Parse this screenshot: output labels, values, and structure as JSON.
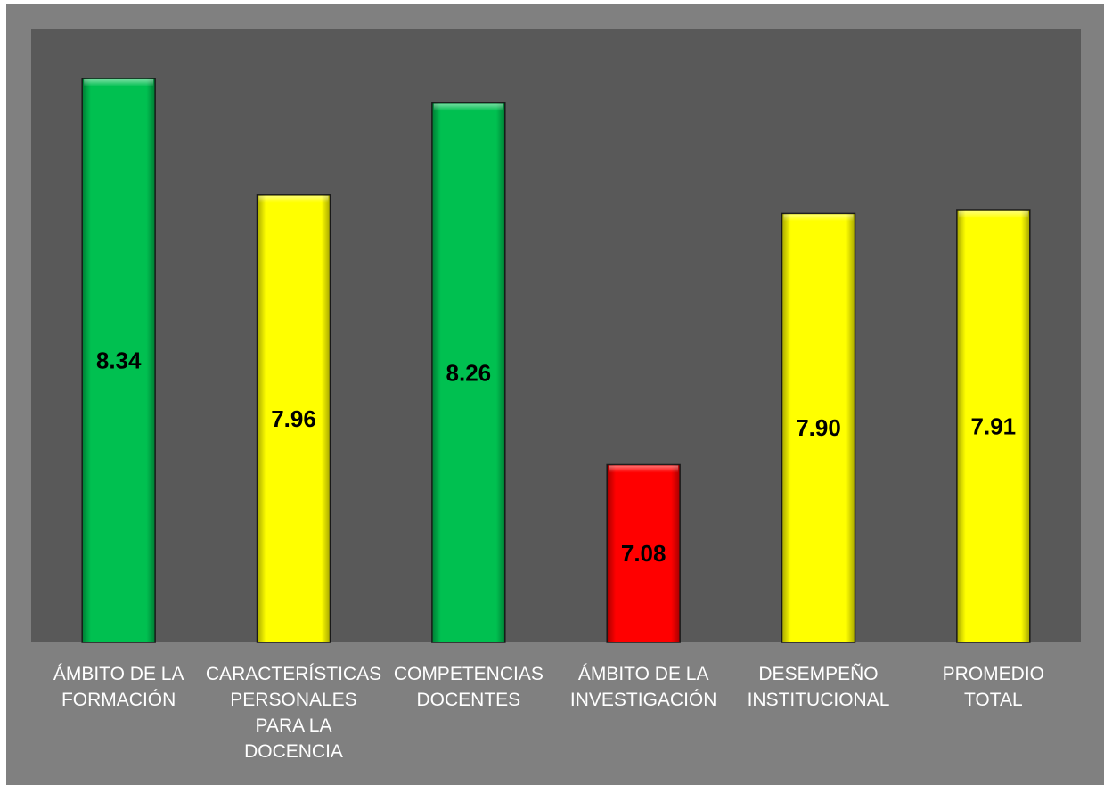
{
  "chart_data": {
    "type": "bar",
    "categories": [
      "ÁMBITO DE LA FORMACIÓN",
      "CARACTERÍSTICAS PERSONALES PARA LA DOCENCIA",
      "COMPETENCIAS DOCENTES",
      "ÁMBITO DE LA INVESTIGACIÓN",
      "DESEMPEÑO INSTITUCIONAL",
      "PROMEDIO TOTAL"
    ],
    "category_lines": [
      [
        "ÁMBITO DE LA",
        "FORMACIÓN"
      ],
      [
        "CARACTERÍSTICAS",
        "PERSONALES",
        "PARA LA",
        "DOCENCIA"
      ],
      [
        "COMPETENCIAS",
        "DOCENTES"
      ],
      [
        "ÁMBITO DE LA",
        "INVESTIGACIÓN"
      ],
      [
        "DESEMPEÑO",
        "INSTITUCIONAL"
      ],
      [
        "PROMEDIO",
        "TOTAL"
      ]
    ],
    "values": [
      8.34,
      7.96,
      8.26,
      7.08,
      7.9,
      7.91
    ],
    "value_labels": [
      "8.34",
      "7.96",
      "8.26",
      "7.08",
      "7.90",
      "7.91"
    ],
    "bar_colors": [
      "#00c050",
      "#ffff00",
      "#00c050",
      "#ff0000",
      "#ffff00",
      "#ffff00"
    ],
    "ylim": [
      6.5,
      8.5
    ],
    "title": "",
    "xlabel": "",
    "ylabel": "",
    "grid": false,
    "legend": "none",
    "plot_background": "#595959",
    "frame_background": "#808080"
  }
}
